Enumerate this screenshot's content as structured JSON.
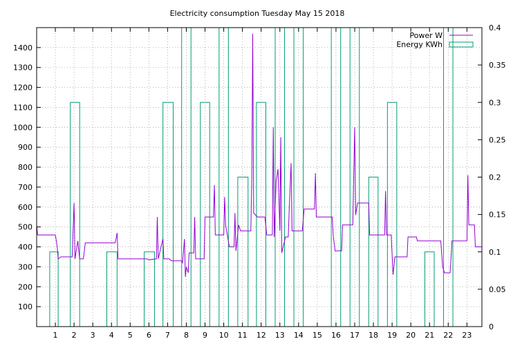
{
  "chart_data": {
    "type": "line",
    "title": "Electricity consumption Tuesday May 15 2018",
    "xlabel": "",
    "ylabel": "",
    "y2label": "",
    "xlim": [
      0,
      23.8
    ],
    "ylim": [
      0,
      1500
    ],
    "y2lim": [
      0,
      0.4
    ],
    "x_ticks": [
      "1",
      "2",
      "3",
      "4",
      "5",
      "6",
      "7",
      "8",
      "9",
      "10",
      "11",
      "12",
      "13",
      "14",
      "15",
      "16",
      "17",
      "18",
      "19",
      "20",
      "21",
      "22",
      "23"
    ],
    "y_ticks": [
      "100",
      "200",
      "300",
      "400",
      "500",
      "600",
      "700",
      "800",
      "900",
      "1000",
      "1100",
      "1200",
      "1300",
      "1400"
    ],
    "y2_ticks": [
      "0",
      "0.05",
      "0.1",
      "0.15",
      "0.2",
      "0.25",
      "0.3",
      "0.35",
      "0.4"
    ],
    "grid": true,
    "legend_position": "top-right",
    "series": [
      {
        "name": "Power W",
        "axis": "left",
        "color": "#9400d3",
        "points": [
          [
            0.0,
            510
          ],
          [
            0.05,
            460
          ],
          [
            1.0,
            460
          ],
          [
            1.1,
            400
          ],
          [
            1.15,
            340
          ],
          [
            1.3,
            350
          ],
          [
            1.9,
            350
          ],
          [
            2.0,
            620
          ],
          [
            2.05,
            340
          ],
          [
            2.2,
            430
          ],
          [
            2.3,
            340
          ],
          [
            2.5,
            340
          ],
          [
            2.6,
            420
          ],
          [
            4.2,
            420
          ],
          [
            4.3,
            470
          ],
          [
            4.35,
            340
          ],
          [
            5.9,
            340
          ],
          [
            6.0,
            335
          ],
          [
            6.4,
            340
          ],
          [
            6.45,
            550
          ],
          [
            6.5,
            340
          ],
          [
            6.75,
            440
          ],
          [
            6.8,
            340
          ],
          [
            7.1,
            340
          ],
          [
            7.2,
            330
          ],
          [
            7.75,
            330
          ],
          [
            7.8,
            320
          ],
          [
            7.9,
            440
          ],
          [
            7.95,
            250
          ],
          [
            8.0,
            300
          ],
          [
            8.1,
            270
          ],
          [
            8.15,
            370
          ],
          [
            8.4,
            370
          ],
          [
            8.45,
            550
          ],
          [
            8.5,
            340
          ],
          [
            8.95,
            340
          ],
          [
            9.0,
            550
          ],
          [
            9.45,
            550
          ],
          [
            9.5,
            710
          ],
          [
            9.55,
            460
          ],
          [
            10.0,
            460
          ],
          [
            10.05,
            650
          ],
          [
            10.1,
            510
          ],
          [
            10.3,
            400
          ],
          [
            10.55,
            400
          ],
          [
            10.6,
            570
          ],
          [
            10.65,
            380
          ],
          [
            10.8,
            510
          ],
          [
            10.9,
            480
          ],
          [
            11.45,
            480
          ],
          [
            11.5,
            750
          ],
          [
            11.55,
            1470
          ],
          [
            11.6,
            570
          ],
          [
            11.8,
            550
          ],
          [
            12.2,
            550
          ],
          [
            12.3,
            460
          ],
          [
            12.6,
            460
          ],
          [
            12.65,
            1000
          ],
          [
            12.7,
            450
          ],
          [
            12.8,
            730
          ],
          [
            12.9,
            790
          ],
          [
            13.0,
            480
          ],
          [
            13.05,
            950
          ],
          [
            13.1,
            370
          ],
          [
            13.3,
            450
          ],
          [
            13.45,
            450
          ],
          [
            13.5,
            590
          ],
          [
            13.6,
            820
          ],
          [
            13.65,
            480
          ],
          [
            14.2,
            480
          ],
          [
            14.3,
            590
          ],
          [
            14.85,
            590
          ],
          [
            14.9,
            770
          ],
          [
            14.95,
            550
          ],
          [
            15.8,
            550
          ],
          [
            15.85,
            460
          ],
          [
            15.95,
            380
          ],
          [
            16.3,
            380
          ],
          [
            16.35,
            510
          ],
          [
            16.9,
            510
          ],
          [
            16.95,
            760
          ],
          [
            17.0,
            1000
          ],
          [
            17.05,
            560
          ],
          [
            17.15,
            620
          ],
          [
            17.75,
            620
          ],
          [
            17.8,
            460
          ],
          [
            18.6,
            460
          ],
          [
            18.65,
            680
          ],
          [
            18.7,
            460
          ],
          [
            18.95,
            460
          ],
          [
            19.05,
            260
          ],
          [
            19.15,
            350
          ],
          [
            19.8,
            350
          ],
          [
            19.85,
            450
          ],
          [
            20.3,
            450
          ],
          [
            20.35,
            430
          ],
          [
            21.6,
            430
          ],
          [
            21.7,
            300
          ],
          [
            21.8,
            270
          ],
          [
            22.1,
            270
          ],
          [
            22.15,
            350
          ],
          [
            22.2,
            430
          ],
          [
            23.0,
            430
          ],
          [
            23.05,
            760
          ],
          [
            23.1,
            510
          ],
          [
            23.4,
            510
          ],
          [
            23.45,
            400
          ],
          [
            23.8,
            400
          ]
        ]
      },
      {
        "name": "Energy KWh",
        "axis": "right",
        "color": "#009e73",
        "bars": [
          {
            "x0": 0.7,
            "x1": 1.15,
            "value": 0.1
          },
          {
            "x0": 1.8,
            "x1": 2.3,
            "value": 0.3
          },
          {
            "x0": 3.75,
            "x1": 4.3,
            "value": 0.1
          },
          {
            "x0": 5.75,
            "x1": 6.3,
            "value": 0.1
          },
          {
            "x0": 6.75,
            "x1": 7.3,
            "value": 0.3
          },
          {
            "x0": 7.75,
            "x1": 8.25,
            "value": 0.4
          },
          {
            "x0": 8.75,
            "x1": 9.25,
            "value": 0.3
          },
          {
            "x0": 9.75,
            "x1": 10.25,
            "value": 0.4
          },
          {
            "x0": 10.75,
            "x1": 11.3,
            "value": 0.2
          },
          {
            "x0": 11.75,
            "x1": 12.25,
            "value": 0.3
          },
          {
            "x0": 12.75,
            "x1": 13.25,
            "value": 0.4
          },
          {
            "x0": 13.75,
            "x1": 14.25,
            "value": 0.4
          },
          {
            "x0": 15.75,
            "x1": 16.25,
            "value": 0.4
          },
          {
            "x0": 16.75,
            "x1": 17.25,
            "value": 0.4
          },
          {
            "x0": 17.75,
            "x1": 18.25,
            "value": 0.2
          },
          {
            "x0": 18.75,
            "x1": 19.25,
            "value": 0.3
          },
          {
            "x0": 20.75,
            "x1": 21.25,
            "value": 0.1
          },
          {
            "x0": 21.75,
            "x1": 22.25,
            "value": 0.4
          }
        ]
      }
    ]
  }
}
